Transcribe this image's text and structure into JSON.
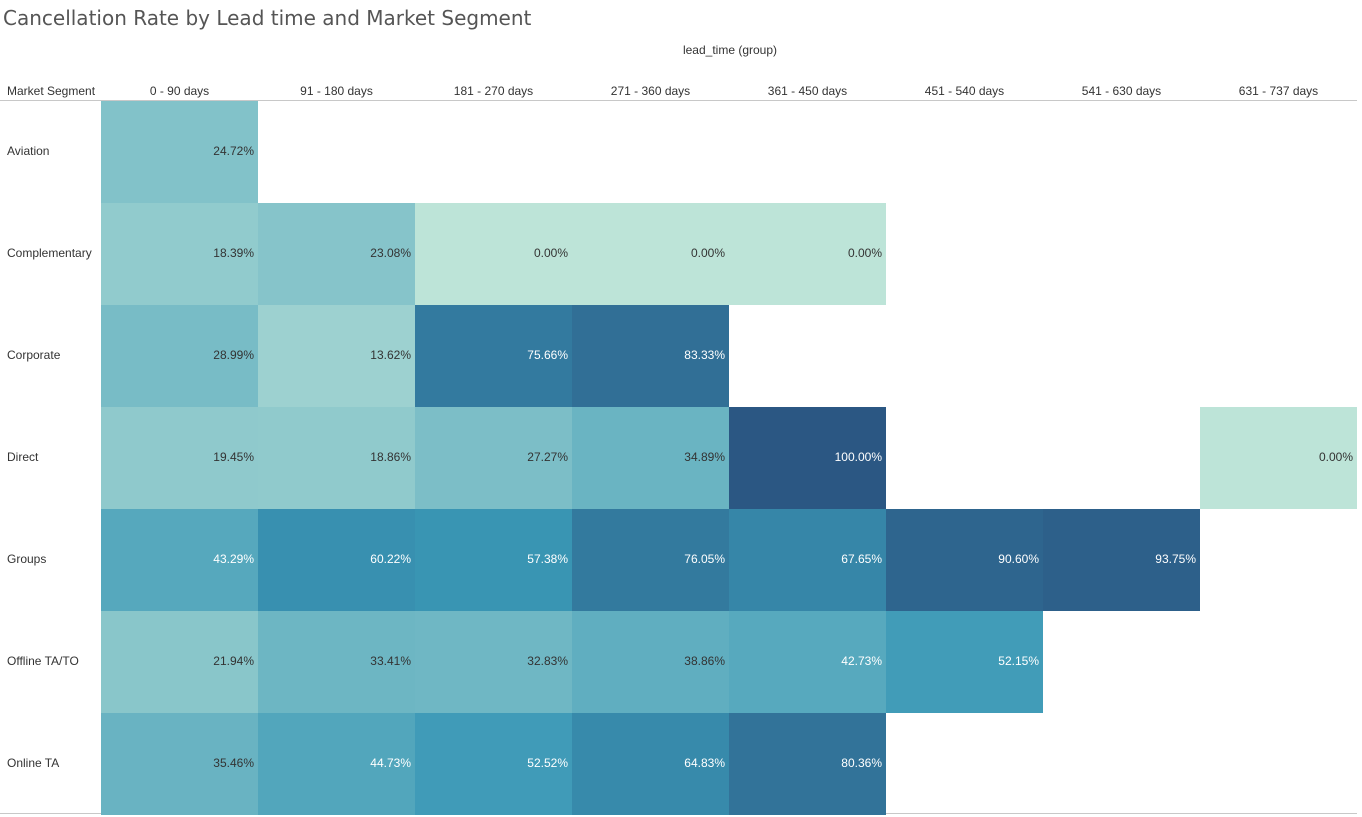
{
  "chart_data": {
    "type": "heatmap",
    "title": "Cancellation Rate by Lead time and Market Segment",
    "column_group_label": "lead_time (group)",
    "row_header": "Market Segment",
    "columns": [
      "0 - 90 days",
      "91 - 180 days",
      "181 - 270 days",
      "271 - 360 days",
      "361 - 450 days",
      "451 - 540 days",
      "541 - 630 days",
      "631 - 737 days"
    ],
    "rows": [
      "Aviation",
      "Complementary",
      "Corporate",
      "Direct",
      "Groups",
      "Offline TA/TO",
      "Online TA"
    ],
    "values": [
      [
        24.72,
        null,
        null,
        null,
        null,
        null,
        null,
        null
      ],
      [
        18.39,
        23.08,
        0.0,
        0.0,
        0.0,
        null,
        null,
        null
      ],
      [
        28.99,
        13.62,
        75.66,
        83.33,
        null,
        null,
        null,
        null
      ],
      [
        19.45,
        18.86,
        27.27,
        34.89,
        100.0,
        null,
        null,
        0.0
      ],
      [
        43.29,
        60.22,
        57.38,
        76.05,
        67.65,
        90.6,
        93.75,
        null
      ],
      [
        21.94,
        33.41,
        32.83,
        38.86,
        42.73,
        52.15,
        null,
        null
      ],
      [
        35.46,
        44.73,
        52.52,
        64.83,
        80.36,
        null,
        null,
        null
      ]
    ],
    "labels": [
      [
        "24.72%",
        null,
        null,
        null,
        null,
        null,
        null,
        null
      ],
      [
        "18.39%",
        "23.08%",
        "0.00%",
        "0.00%",
        "0.00%",
        null,
        null,
        null
      ],
      [
        "28.99%",
        "13.62%",
        "75.66%",
        "83.33%",
        null,
        null,
        null,
        null
      ],
      [
        "19.45%",
        "18.86%",
        "27.27%",
        "34.89%",
        "100.00%",
        null,
        null,
        "0.00%"
      ],
      [
        "43.29%",
        "60.22%",
        "57.38%",
        "76.05%",
        "67.65%",
        "90.60%",
        "93.75%",
        null
      ],
      [
        "21.94%",
        "33.41%",
        "32.83%",
        "38.86%",
        "42.73%",
        "52.15%",
        null,
        null
      ],
      [
        "35.46%",
        "44.73%",
        "52.52%",
        "64.83%",
        "80.36%",
        null,
        null,
        null
      ]
    ],
    "color_scale": {
      "low": "#bde4d8",
      "mid": "#3a98b6",
      "high": "#2b5783"
    }
  }
}
